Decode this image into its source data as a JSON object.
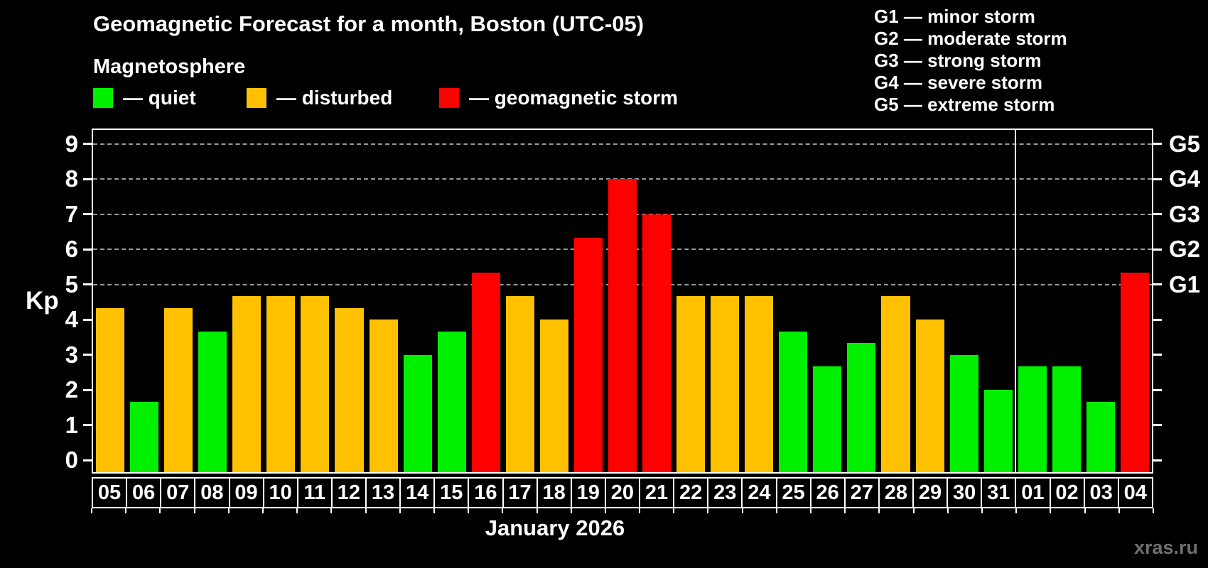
{
  "title": "Geomagnetic Forecast for a month, Boston (UTC-05)",
  "subtitle": "Magnetosphere",
  "status_legend": {
    "quiet": {
      "label": "— quiet",
      "color": "#00f000"
    },
    "disturbed": {
      "label": "— disturbed",
      "color": "#ffc000"
    },
    "storm": {
      "label": "— geomagnetic storm",
      "color": "#ff0000"
    }
  },
  "g_legend": {
    "items": [
      {
        "label": "G1 — minor storm"
      },
      {
        "label": "G2 — moderate storm"
      },
      {
        "label": "G3 — strong storm"
      },
      {
        "label": "G4 — severe storm"
      },
      {
        "label": "G5 — extreme storm"
      }
    ]
  },
  "kp_axis_label": "Kp",
  "xlabel": "January 2026",
  "watermark": "xras.ru",
  "chart_data": {
    "type": "bar",
    "title": "Geomagnetic Forecast for a month, Boston (UTC-05)",
    "ylabel": "Kp",
    "xlabel": "January 2026",
    "categories": [
      "05",
      "06",
      "07",
      "08",
      "09",
      "10",
      "11",
      "12",
      "13",
      "14",
      "15",
      "16",
      "17",
      "18",
      "19",
      "20",
      "21",
      "22",
      "23",
      "24",
      "25",
      "26",
      "27",
      "28",
      "29",
      "30",
      "31",
      "01",
      "02",
      "03",
      "04"
    ],
    "values": [
      4.33,
      1.67,
      4.33,
      3.67,
      4.67,
      4.67,
      4.67,
      4.33,
      4.0,
      3.0,
      3.67,
      5.33,
      4.67,
      4.0,
      6.33,
      8.0,
      7.0,
      4.67,
      4.67,
      4.67,
      3.67,
      2.67,
      3.33,
      4.67,
      4.0,
      3.0,
      2.0,
      2.67,
      2.67,
      1.67,
      5.33
    ],
    "statuses": [
      "disturbed",
      "quiet",
      "disturbed",
      "quiet",
      "disturbed",
      "disturbed",
      "disturbed",
      "disturbed",
      "disturbed",
      "quiet",
      "quiet",
      "storm",
      "disturbed",
      "disturbed",
      "storm",
      "storm",
      "storm",
      "disturbed",
      "disturbed",
      "disturbed",
      "quiet",
      "quiet",
      "quiet",
      "disturbed",
      "disturbed",
      "quiet",
      "quiet",
      "quiet",
      "quiet",
      "quiet",
      "storm"
    ],
    "status_colors": {
      "quiet": "#00f000",
      "disturbed": "#ffc000",
      "storm": "#ff0000"
    },
    "yticks": [
      0,
      1,
      2,
      3,
      4,
      5,
      6,
      7,
      8,
      9
    ],
    "ylim": [
      -0.34,
      9.4
    ],
    "grid_levels": [
      5,
      6,
      7,
      8,
      9
    ],
    "grid_color": "#999999",
    "grid_style": "dashed",
    "legend_position": "top",
    "right_labels": [
      {
        "kp": 5,
        "label": "G1"
      },
      {
        "kp": 6,
        "label": "G2"
      },
      {
        "kp": 7,
        "label": "G3"
      },
      {
        "kp": 8,
        "label": "G4"
      },
      {
        "kp": 9,
        "label": "G5"
      }
    ],
    "month_separator_index": 27
  }
}
